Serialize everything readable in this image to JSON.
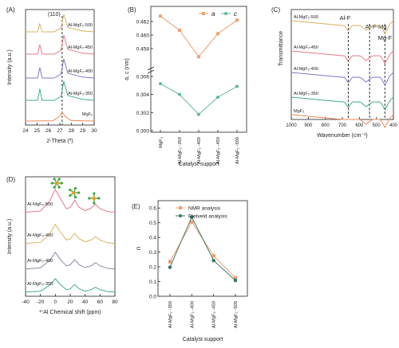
{
  "chart_data": [
    {
      "panel": "(A)",
      "type": "line",
      "xlabel": "2-Theta (º)",
      "ylabel": "Intensity (a.u.)",
      "xlim": [
        24,
        30
      ],
      "xticks": [
        "24",
        "25",
        "26",
        "27",
        "28",
        "29",
        "30"
      ],
      "annotation": "(110)",
      "ref_line_x": 27.2,
      "series": [
        {
          "name": "Al-MgF₂-500",
          "color": "#d8b163",
          "x": [
            24,
            25.05,
            25.25,
            25.45,
            26.5,
            27.1,
            27.35,
            27.7,
            29,
            30
          ],
          "y": [
            0,
            0,
            0.45,
            0,
            0,
            0.2,
            1.0,
            0.25,
            0.05,
            0
          ]
        },
        {
          "name": "Al-MgF₂-450",
          "color": "#e57b86",
          "x": [
            24,
            25.05,
            25.25,
            25.45,
            26.5,
            27.1,
            27.35,
            27.7,
            29,
            30
          ],
          "y": [
            0,
            0,
            0.5,
            0,
            0,
            0.2,
            1.0,
            0.25,
            0.05,
            0
          ]
        },
        {
          "name": "Al-MgF₂-400",
          "color": "#7e78c9",
          "x": [
            24,
            25.05,
            25.25,
            25.45,
            26.5,
            27.1,
            27.35,
            27.7,
            29,
            30
          ],
          "y": [
            0,
            0,
            0.55,
            0,
            0,
            0.2,
            1.0,
            0.25,
            0.05,
            0
          ]
        },
        {
          "name": "Al-MgF₂-350",
          "color": "#3fae86",
          "x": [
            24,
            25.05,
            25.25,
            25.45,
            26.5,
            27.1,
            27.35,
            27.7,
            29,
            30
          ],
          "y": [
            0,
            0,
            0.6,
            0,
            0,
            0.2,
            1.0,
            0.25,
            0.05,
            0
          ]
        },
        {
          "name": "MgF₂",
          "color": "#ef8a56",
          "x": [
            24,
            26.4,
            26.9,
            27.2,
            27.5,
            28.0,
            30
          ],
          "y": [
            0,
            0.02,
            0.25,
            0.55,
            0.25,
            0.03,
            0
          ]
        }
      ]
    },
    {
      "panel": "(B)",
      "type": "line",
      "xlabel": "Catalyst support",
      "ylabel": "a, c (nm)",
      "categories": [
        "MgF₂",
        "Al-MgF₂ -350",
        "Al-MgF₂ -400",
        "Al-MgF₂ -450",
        "Al-MgF₂ -500"
      ],
      "series": [
        {
          "name": "a",
          "color": "#f0a070",
          "values": [
            0.4628,
            0.4607,
            0.4568,
            0.4602,
            0.4622
          ]
        },
        {
          "name": "c",
          "color": "#5fb89a",
          "values": [
            0.3052,
            0.304,
            0.3018,
            0.3037,
            0.3049
          ]
        }
      ],
      "upper_ylim": [
        0.456,
        0.464
      ],
      "upper_yticks": [
        "0.458",
        "0.460",
        "0.462"
      ],
      "lower_ylim": [
        0.3,
        0.306
      ],
      "lower_yticks": [
        "0.300",
        "0.302",
        "0.304",
        "0.306"
      ]
    },
    {
      "panel": "(C)",
      "type": "line",
      "xlabel": "Wavenumber (cm⁻¹)",
      "ylabel": "Transmittance",
      "xlim": [
        1000,
        400
      ],
      "xticks": [
        "1000",
        "900",
        "800",
        "700",
        "600",
        "500",
        "400"
      ],
      "annotations": [
        "Al-F",
        "Al-F-Mg",
        "Mg-F"
      ],
      "ref_lines_x": [
        665,
        540,
        450
      ],
      "series_names": [
        "Al-MgF₂-500",
        "Al-MgF₂-450",
        "Al-MgF₂-400",
        "Al-MgF₂-350",
        "MgF₂"
      ],
      "colors": [
        "#d8b163",
        "#e57b86",
        "#7e78c9",
        "#3fae86",
        "#ef8a56"
      ]
    },
    {
      "panel": "(D)",
      "type": "line",
      "xlabel": "²⁷Al Chemical shift (ppm)",
      "ylabel": "Intensity (a.u.)",
      "xlim": [
        -40,
        80
      ],
      "xticks": [
        "-40",
        "-20",
        "0",
        "20",
        "40",
        "60",
        "80"
      ],
      "series": [
        {
          "name": "Al-MgF₂-500",
          "color": "#e57b86",
          "x": [
            -40,
            -20,
            -8,
            0,
            8,
            15,
            20,
            26,
            32,
            40,
            48,
            54,
            60,
            70,
            80
          ],
          "y": [
            0.05,
            0.1,
            0.5,
            1.0,
            0.55,
            0.2,
            0.25,
            0.55,
            0.25,
            0.12,
            0.22,
            0.38,
            0.2,
            0.08,
            0.05
          ]
        },
        {
          "name": "Al-MgF₂-450",
          "color": "#d8b163",
          "x": [
            -40,
            -20,
            -8,
            0,
            8,
            15,
            20,
            26,
            32,
            40,
            48,
            54,
            60,
            70,
            80
          ],
          "y": [
            0.05,
            0.1,
            0.45,
            0.9,
            0.5,
            0.2,
            0.25,
            0.5,
            0.25,
            0.12,
            0.2,
            0.35,
            0.2,
            0.08,
            0.05
          ]
        },
        {
          "name": "Al-MgF₂-400",
          "color": "#8c8ca8",
          "x": [
            -40,
            -20,
            -8,
            0,
            8,
            15,
            20,
            26,
            32,
            40,
            48,
            54,
            60,
            70,
            80
          ],
          "y": [
            0.05,
            0.1,
            0.45,
            0.85,
            0.45,
            0.2,
            0.25,
            0.5,
            0.25,
            0.12,
            0.2,
            0.35,
            0.2,
            0.08,
            0.05
          ]
        },
        {
          "name": "Al-MgF₂-350",
          "color": "#3fae86",
          "x": [
            -40,
            -20,
            -8,
            0,
            8,
            15,
            20,
            26,
            32,
            40,
            48,
            54,
            60,
            70,
            80
          ],
          "y": [
            0.05,
            0.1,
            0.4,
            0.75,
            0.4,
            0.18,
            0.22,
            0.45,
            0.22,
            0.1,
            0.18,
            0.3,
            0.18,
            0.08,
            0.05
          ]
        }
      ]
    },
    {
      "panel": "(E)",
      "type": "line",
      "xlabel": "Catalyst support",
      "ylabel": "n",
      "categories": [
        "Al-MgF₂ -350",
        "Al-MgF₂ -400",
        "Al-MgF₂ -450",
        "Al-MgF₂ -500"
      ],
      "ylim": [
        0.0,
        0.65
      ],
      "yticks": [
        "0.0",
        "0.1",
        "0.2",
        "0.3",
        "0.4",
        "0.5",
        "0.6"
      ],
      "legend": "top",
      "series": [
        {
          "name": "NMR analysis",
          "color": "#f0a070",
          "values": [
            0.235,
            0.505,
            0.275,
            0.125
          ]
        },
        {
          "name": "Rietveld analysis",
          "color": "#3c7a6a",
          "values": [
            0.197,
            0.538,
            0.243,
            0.108
          ]
        }
      ]
    }
  ]
}
